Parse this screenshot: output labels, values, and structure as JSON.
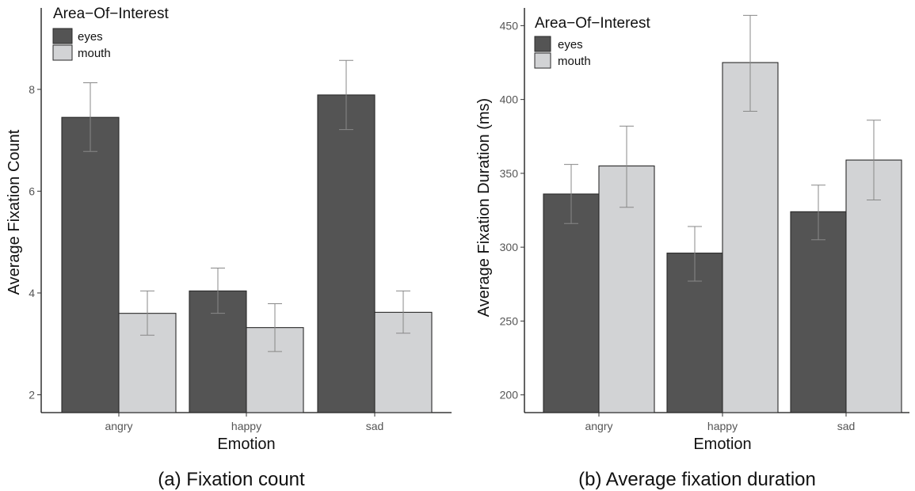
{
  "chart_data": [
    {
      "type": "bar",
      "categories": [
        "angry",
        "happy",
        "sad"
      ],
      "series": [
        {
          "name": "eyes",
          "values": [
            7.45,
            4.04,
            7.89
          ],
          "error_low": [
            6.78,
            3.6,
            7.21
          ],
          "error_high": [
            8.13,
            4.49,
            8.57
          ]
        },
        {
          "name": "mouth",
          "values": [
            3.6,
            3.32,
            3.62
          ],
          "error_low": [
            3.17,
            2.85,
            3.21
          ],
          "error_high": [
            4.04,
            3.79,
            4.04
          ]
        }
      ],
      "xlabel": "Emotion",
      "ylabel": "Average Fixation Count",
      "ylim": [
        1.65,
        9.6
      ],
      "yticks": [
        2,
        4,
        6,
        8
      ],
      "legend_title": "Area−Of−Interest",
      "legend_position": "top-left",
      "caption": "(a) Fixation count",
      "colors": {
        "eyes": "#545454",
        "mouth": "#d2d3d5"
      }
    },
    {
      "type": "bar",
      "categories": [
        "angry",
        "happy",
        "sad"
      ],
      "series": [
        {
          "name": "eyes",
          "values": [
            336,
            296,
            324
          ],
          "error_low": [
            316,
            277,
            305
          ],
          "error_high": [
            356,
            314,
            342
          ]
        },
        {
          "name": "mouth",
          "values": [
            355,
            425,
            359
          ],
          "error_low": [
            327,
            392,
            332
          ],
          "error_high": [
            382,
            457,
            386
          ]
        }
      ],
      "xlabel": "Emotion",
      "ylabel": "Average Fixation Duration (ms)",
      "ylim": [
        188,
        462
      ],
      "yticks": [
        200,
        250,
        300,
        350,
        400,
        450
      ],
      "legend_title": "Area−Of−Interest",
      "legend_position": "top-left",
      "caption": "(b) Average fixation duration",
      "colors": {
        "eyes": "#545454",
        "mouth": "#d2d3d5"
      }
    }
  ]
}
